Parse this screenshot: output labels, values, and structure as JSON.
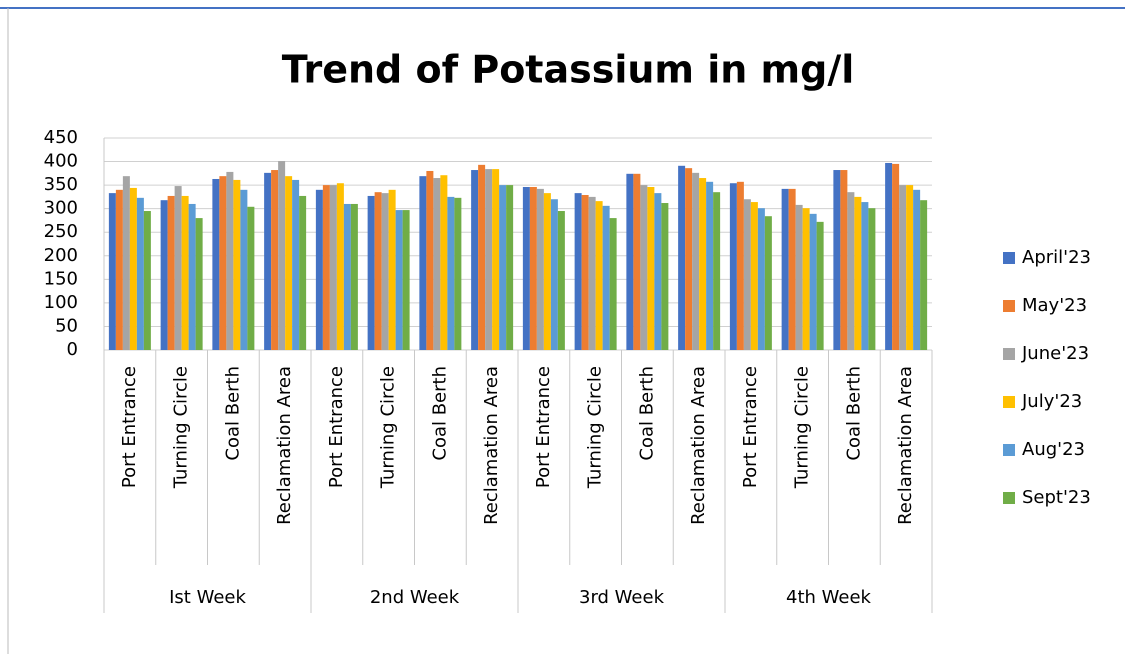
{
  "chart_data": {
    "type": "bar",
    "title": "Trend of Potassium in mg/l",
    "categories": [
      "Port Entrance",
      "Turning Circle",
      "Coal Berth",
      "Reclamation Area",
      "Port Entrance",
      "Turning Circle",
      "Coal Berth",
      "Reclamation Area",
      "Port Entrance",
      "Turning Circle",
      "Coal Berth",
      "Reclamation Area",
      "Port Entrance",
      "Turning Circle",
      "Coal Berth",
      "Reclamation Area"
    ],
    "groups": [
      "Ist Week",
      "2nd Week",
      "3rd Week",
      "4th Week"
    ],
    "series": [
      {
        "name": "April'23",
        "color": "#4472c4",
        "values": [
          333,
          318,
          363,
          376,
          340,
          327,
          369,
          382,
          346,
          333,
          374,
          391,
          354,
          342,
          382,
          397
        ]
      },
      {
        "name": "May'23",
        "color": "#ed7d31",
        "values": [
          340,
          327,
          369,
          382,
          350,
          335,
          380,
          393,
          346,
          329,
          374,
          386,
          357,
          342,
          382,
          395
        ]
      },
      {
        "name": "June'23",
        "color": "#a5a5a5",
        "values": [
          369,
          348,
          378,
          401,
          350,
          333,
          365,
          384,
          342,
          325,
          350,
          376,
          320,
          308,
          335,
          350
        ]
      },
      {
        "name": "July'23",
        "color": "#ffc000",
        "values": [
          344,
          327,
          361,
          369,
          354,
          340,
          371,
          384,
          333,
          316,
          346,
          365,
          314,
          301,
          325,
          350
        ]
      },
      {
        "name": "Aug'23",
        "color": "#5b9bd5",
        "values": [
          323,
          310,
          340,
          361,
          310,
          297,
          325,
          350,
          320,
          306,
          333,
          357,
          301,
          289,
          314,
          340
        ]
      },
      {
        "name": "Sept'23",
        "color": "#70ad47",
        "values": [
          295,
          280,
          304,
          327,
          310,
          297,
          323,
          350,
          295,
          280,
          312,
          335,
          284,
          272,
          301,
          318
        ]
      }
    ],
    "ylim": [
      0,
      450
    ],
    "yticks": [
      0,
      50,
      100,
      150,
      200,
      250,
      300,
      350,
      400,
      450
    ],
    "grid": true,
    "legend": "right"
  }
}
